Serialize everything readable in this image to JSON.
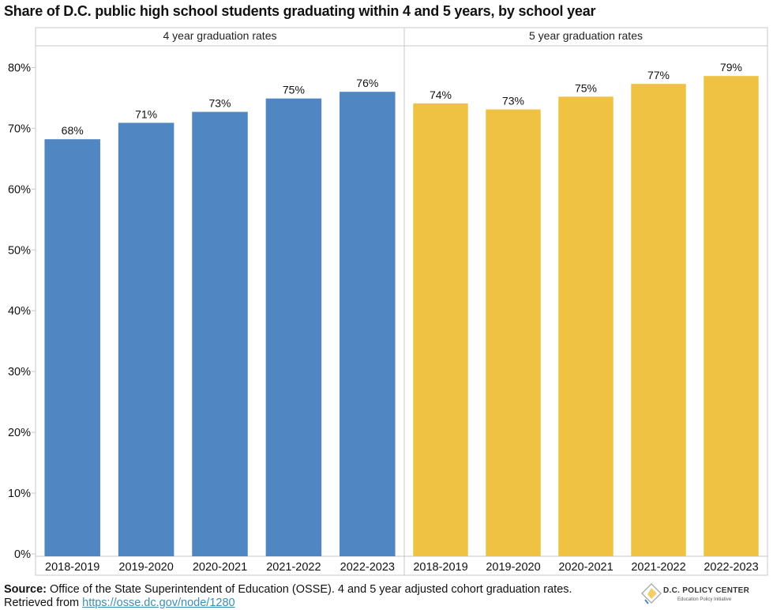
{
  "title": "Share of D.C. public high school students graduating within 4 and 5 years, by school year",
  "chart_data": {
    "type": "bar",
    "ylim": [
      0,
      85
    ],
    "yticks": [
      0,
      10,
      20,
      30,
      40,
      50,
      60,
      70,
      80
    ],
    "ytick_labels": [
      "0%",
      "10%",
      "20%",
      "30%",
      "40%",
      "50%",
      "60%",
      "70%",
      "80%"
    ],
    "grid": false,
    "panels": [
      {
        "title": "4 year graduation rates",
        "color": "#5086c1",
        "categories": [
          "2018-2019",
          "2019-2020",
          "2020-2021",
          "2021-2022",
          "2022-2023"
        ],
        "values": [
          68.2,
          70.9,
          72.7,
          74.9,
          76.0
        ],
        "labels": [
          "68%",
          "71%",
          "73%",
          "75%",
          "76%"
        ]
      },
      {
        "title": "5 year graduation rates",
        "color": "#f0c244",
        "categories": [
          "2018-2019",
          "2019-2020",
          "2020-2021",
          "2021-2022",
          "2022-2023"
        ],
        "values": [
          74.1,
          73.1,
          75.2,
          77.3,
          78.6
        ],
        "labels": [
          "74%",
          "73%",
          "75%",
          "77%",
          "79%"
        ]
      }
    ]
  },
  "source": {
    "label": "Source:",
    "text": " Office of the State Superintendent of Education (OSSE). 4 and 5 year adjusted cohort graduation rates. Retrieved from ",
    "link": "https://osse.dc.gov/node/1280"
  },
  "logo": {
    "name": "D.C. POLICY CENTER",
    "subtitle": "Education Policy Initiative",
    "icon": "dc-map-icon"
  }
}
